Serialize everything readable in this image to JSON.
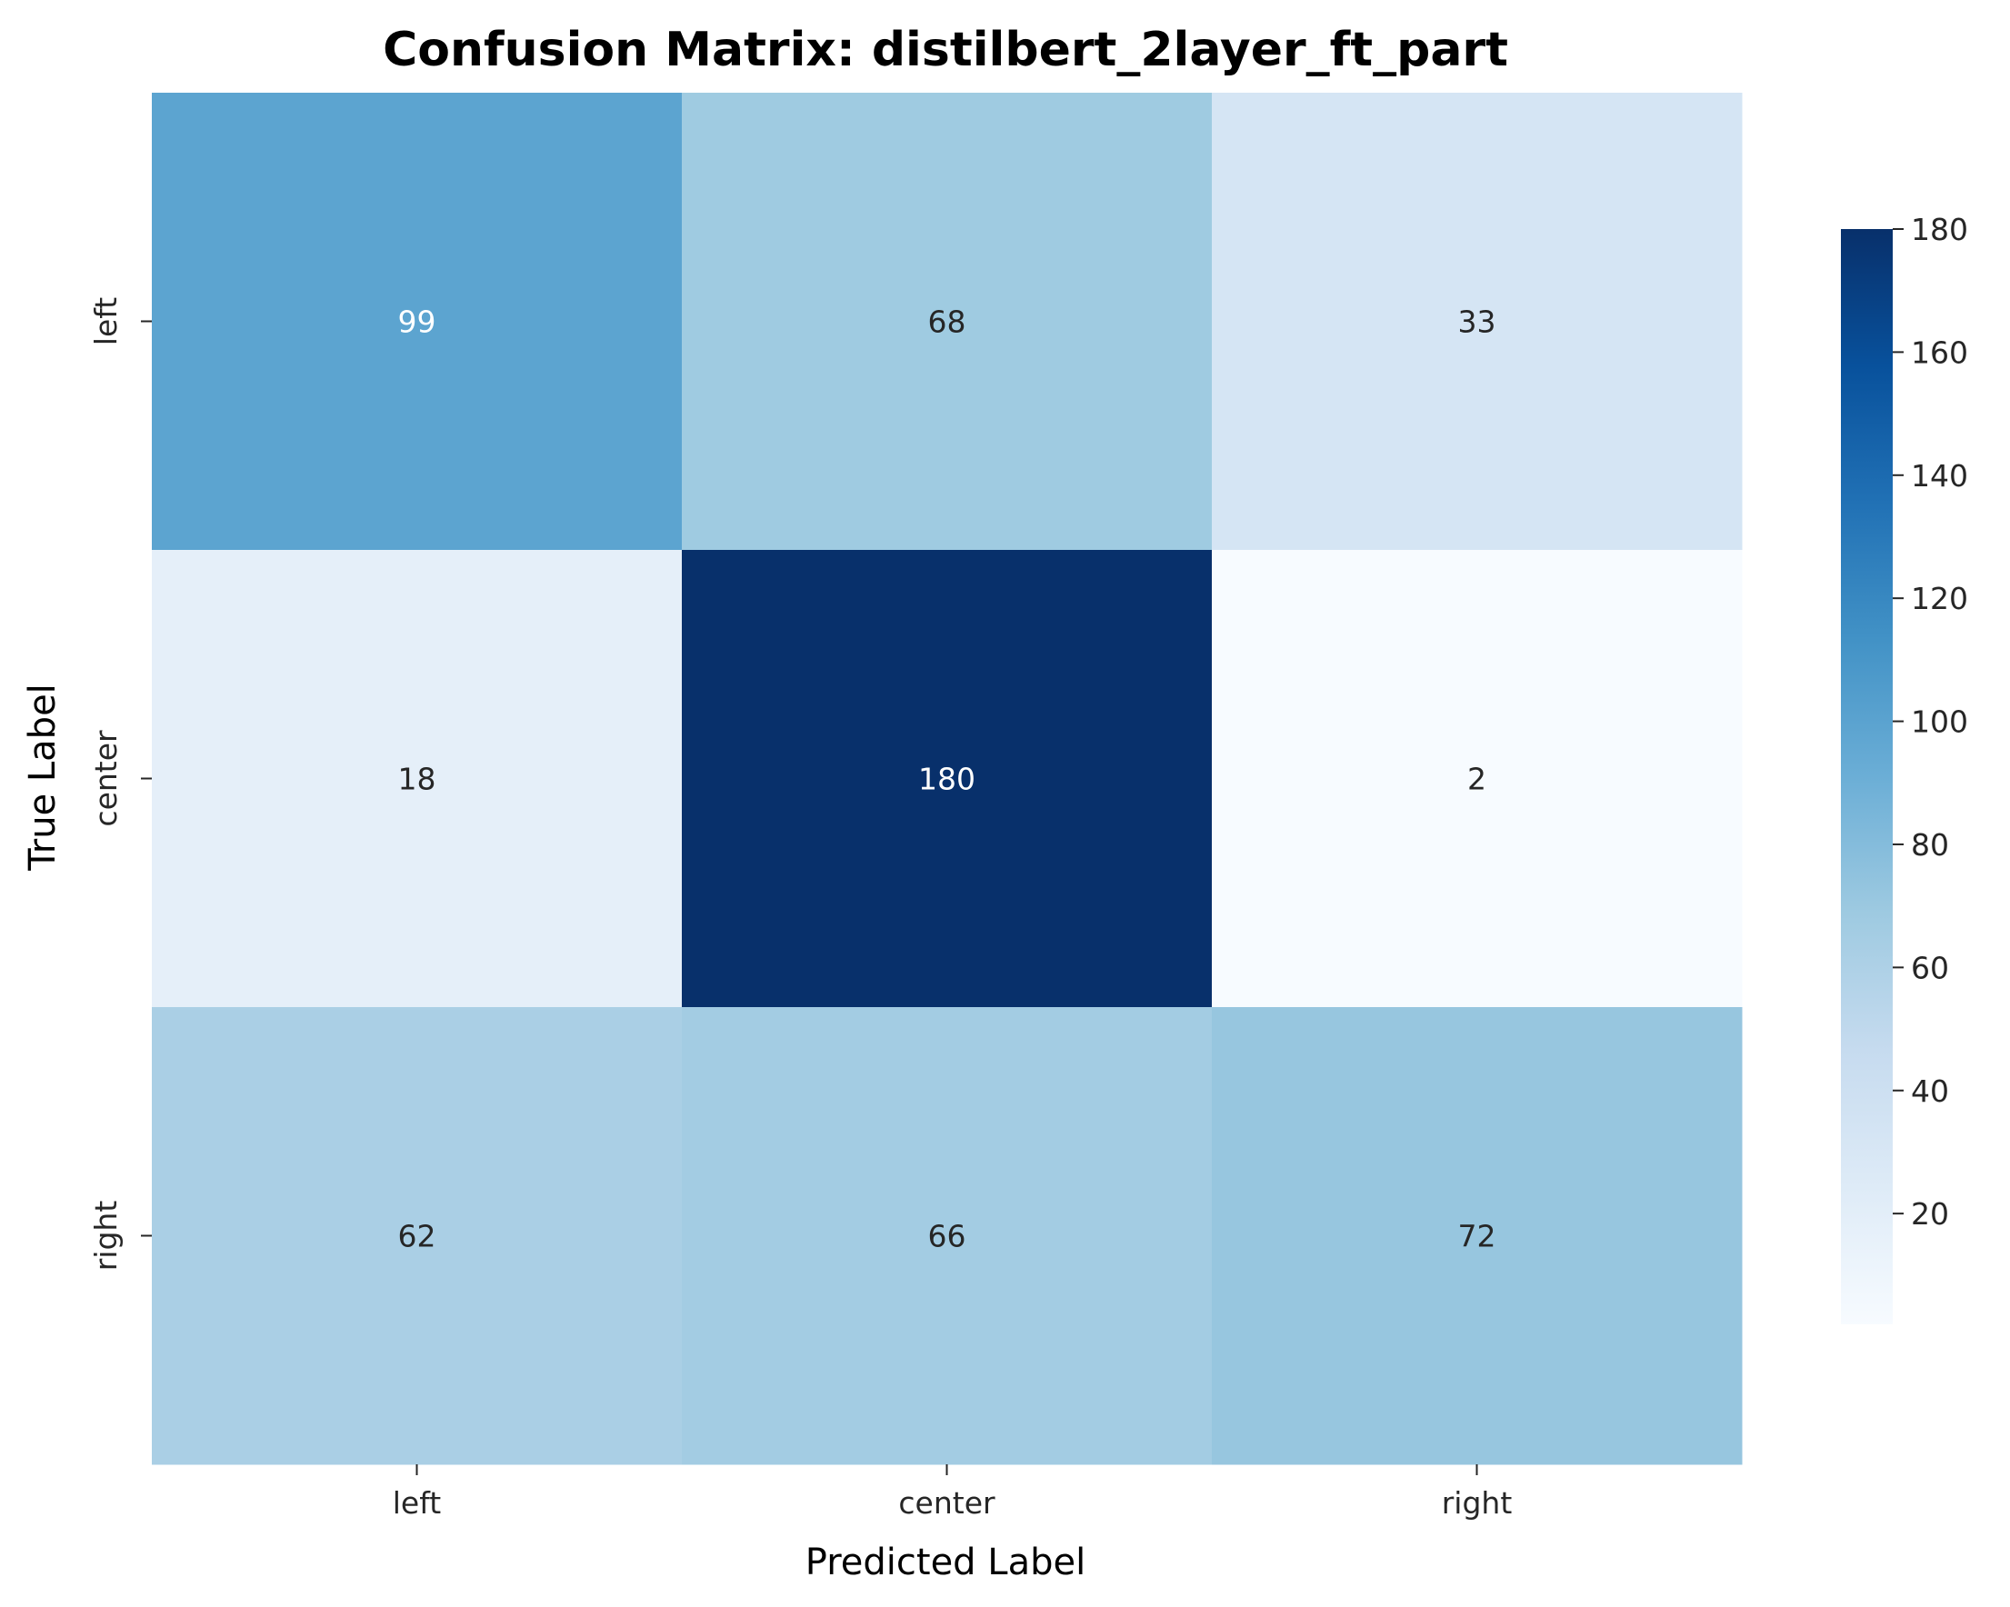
{
  "chart_data": {
    "type": "heatmap",
    "title": "Confusion Matrix: distilbert_2layer_ft_part",
    "xlabel": "Predicted Label",
    "ylabel": "True Label",
    "x_categories": [
      "left",
      "center",
      "right"
    ],
    "y_categories": [
      "left",
      "center",
      "right"
    ],
    "values": [
      [
        99,
        68,
        33
      ],
      [
        18,
        180,
        2
      ],
      [
        62,
        66,
        72
      ]
    ],
    "colormap": "Blues",
    "colorbar": {
      "min": 2,
      "max": 180,
      "ticks": [
        20,
        40,
        60,
        80,
        100,
        120,
        140,
        160,
        180
      ]
    }
  }
}
